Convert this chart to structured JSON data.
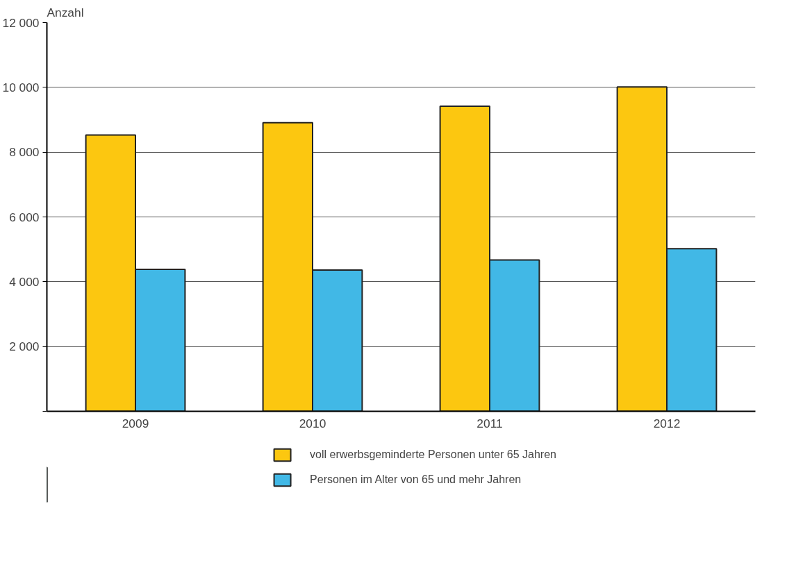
{
  "chart_data": {
    "type": "bar",
    "ylabel": "Anzahl",
    "categories": [
      "2009",
      "2010",
      "2011",
      "2012"
    ],
    "series": [
      {
        "name": "voll erwerbsgeminderte Personen unter 65 Jahren",
        "color": "#fcc710",
        "values": [
          8530,
          8910,
          9420,
          10010
        ]
      },
      {
        "name": "Personen im Alter von 65 und mehr Jahren",
        "color": "#41b8e6",
        "values": [
          4380,
          4360,
          4670,
          5020
        ]
      }
    ],
    "ylim": [
      0,
      12000
    ],
    "yticks": [
      {
        "value": 0,
        "label": null
      },
      {
        "value": 2000,
        "label": "2 000"
      },
      {
        "value": 4000,
        "label": "4 000"
      },
      {
        "value": 6000,
        "label": "6 000"
      },
      {
        "value": 8000,
        "label": "8 000"
      },
      {
        "value": 10000,
        "label": "10 000"
      },
      {
        "value": 12000,
        "label": "12 000"
      }
    ],
    "grid": "y",
    "legend": "bottom"
  }
}
